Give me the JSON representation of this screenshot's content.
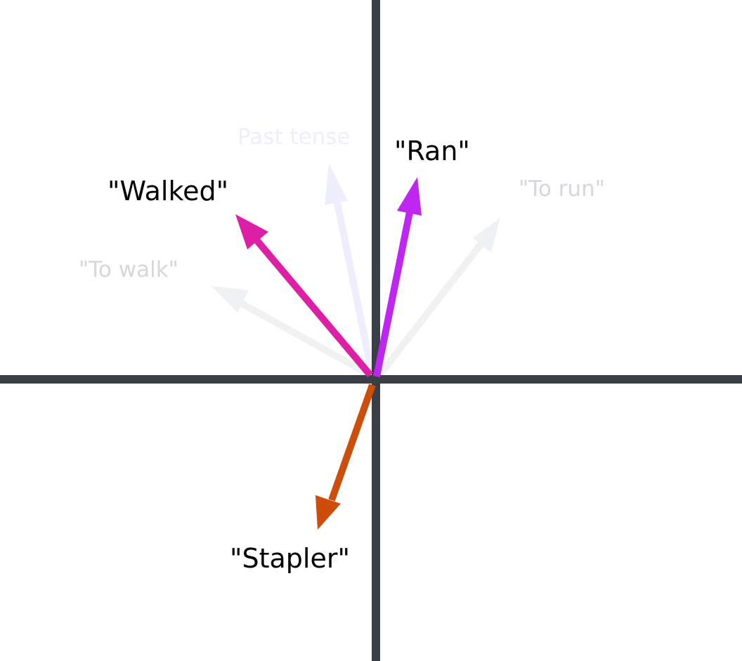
{
  "vectors": [
    {
      "id": "to-walk",
      "label": "\"To walk\"",
      "color": "#f0f1f3",
      "label_color": "#d4d7dc",
      "emphasis": "faded"
    },
    {
      "id": "past-tense",
      "label": "Past tense",
      "color": "#eeeefd",
      "label_color": "#eeeefd",
      "emphasis": "faded"
    },
    {
      "id": "to-run",
      "label": "\"To run\"",
      "color": "#f0f1f3",
      "label_color": "#d4d7dc",
      "emphasis": "faded"
    },
    {
      "id": "walked",
      "label": "\"Walked\"",
      "color": "#dd1fa5",
      "label_color": "#000000",
      "emphasis": "highlighted"
    },
    {
      "id": "ran",
      "label": "\"Ran\"",
      "color": "#c026f2",
      "label_color": "#000000",
      "emphasis": "highlighted"
    },
    {
      "id": "stapler",
      "label": "\"Stapler\"",
      "color": "#cc4e0a",
      "label_color": "#000000",
      "emphasis": "highlighted"
    }
  ],
  "axis_color": "#3a3f46"
}
